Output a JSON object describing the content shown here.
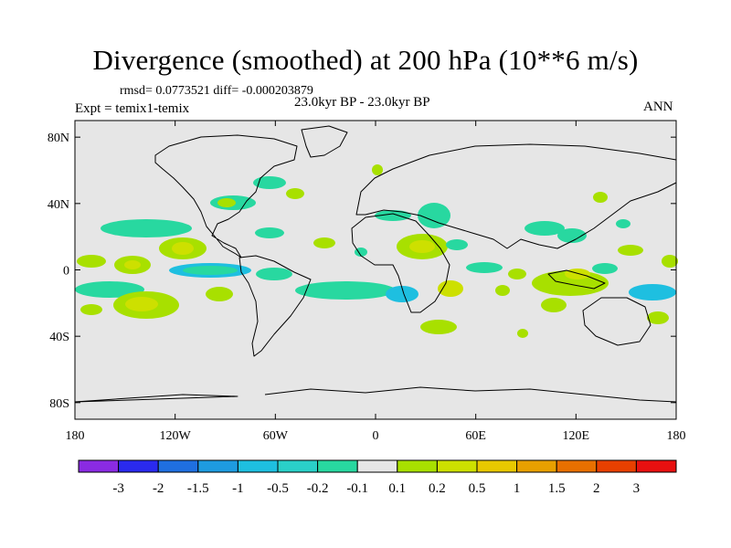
{
  "title": "Divergence (smoothed) at 200 hPa (10**6 m/s)",
  "stats": "rmsd= 0.0773521 diff= -0.000203879",
  "experiment": "Expt = temix1-temix",
  "period": "23.0kyr BP - 23.0kyr BP",
  "season": "ANN",
  "axes": {
    "lon_ticks": [
      {
        "value": -180,
        "label": "180"
      },
      {
        "value": -120,
        "label": "120W"
      },
      {
        "value": -60,
        "label": "60W"
      },
      {
        "value": 0,
        "label": "0"
      },
      {
        "value": 60,
        "label": "60E"
      },
      {
        "value": 120,
        "label": "120E"
      },
      {
        "value": 180,
        "label": "180"
      }
    ],
    "lat_ticks": [
      {
        "value": 80,
        "label": "80N"
      },
      {
        "value": 40,
        "label": "40N"
      },
      {
        "value": 0,
        "label": "0"
      },
      {
        "value": -40,
        "label": "40S"
      },
      {
        "value": -80,
        "label": "80S"
      }
    ]
  },
  "colorbar": {
    "colors": [
      "#8a2be2",
      "#2a2aee",
      "#1f6fe0",
      "#1e9be0",
      "#1ebfe0",
      "#2ad0c8",
      "#28d8a0",
      "#e6e6e6",
      "#a8e000",
      "#cde000",
      "#e8c800",
      "#e8a000",
      "#e87000",
      "#e84000",
      "#e81010"
    ],
    "labels": [
      "-3",
      "-2",
      "-1.5",
      "-1",
      "-0.5",
      "-0.2",
      "-0.1",
      "0.1",
      "0.2",
      "0.5",
      "1",
      "1.5",
      "2",
      "3"
    ]
  },
  "colors": {
    "background": "#e6e6e6",
    "coastline": "#000000",
    "pos_weak": "#a8e000",
    "pos_mid": "#cde000",
    "pos_strong": "#e8c800",
    "neg_weak": "#28d8a0",
    "neg_mid": "#1ebfe0"
  }
}
